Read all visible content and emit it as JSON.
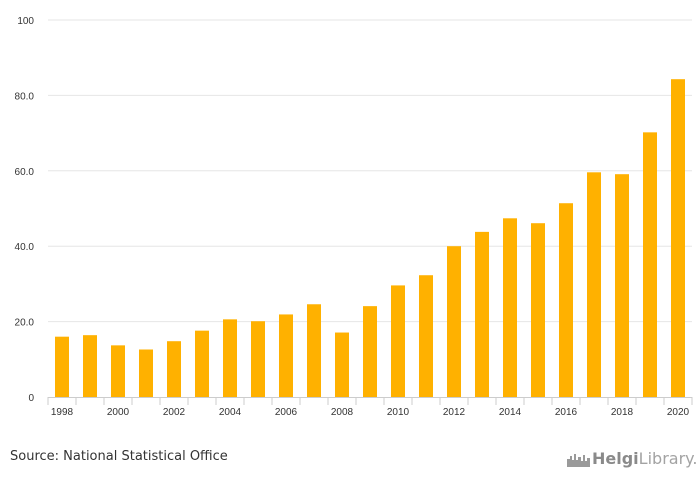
{
  "chart_data": {
    "type": "bar",
    "title": "",
    "xlabel": "",
    "ylabel": "",
    "categories": [
      "1998",
      "1999",
      "2000",
      "2001",
      "2002",
      "2003",
      "2004",
      "2005",
      "2006",
      "2007",
      "2008",
      "2009",
      "2010",
      "2011",
      "2012",
      "2013",
      "2014",
      "2015",
      "2016",
      "2017",
      "2018",
      "2019",
      "2020"
    ],
    "values": [
      16.0,
      16.4,
      13.7,
      12.6,
      14.8,
      17.6,
      20.6,
      20.1,
      21.9,
      24.6,
      17.1,
      24.1,
      29.6,
      32.3,
      40.0,
      43.8,
      47.4,
      46.1,
      51.4,
      59.6,
      59.1,
      70.2,
      84.3
    ],
    "x_tick_labels": [
      "1998",
      "2000",
      "2002",
      "2004",
      "2006",
      "2008",
      "2010",
      "2012",
      "2014",
      "2016",
      "2018",
      "2020"
    ],
    "y_ticks": [
      0,
      20,
      40,
      60,
      80,
      100
    ],
    "y_tick_labels": [
      "0",
      "20.0",
      "40.0",
      "60.0",
      "80.0",
      "100"
    ],
    "ylim": [
      0,
      100
    ],
    "grid": true,
    "bar_color": "#FFB100"
  },
  "footer": {
    "source": "Source: National Statistical Office",
    "logo_text_bold": "Helgi",
    "logo_text_light": "Library."
  },
  "colors": {
    "gridline": "#e6e6e6",
    "axis": "#cccccc",
    "text": "#333333",
    "logo": "#8a8a8a"
  }
}
